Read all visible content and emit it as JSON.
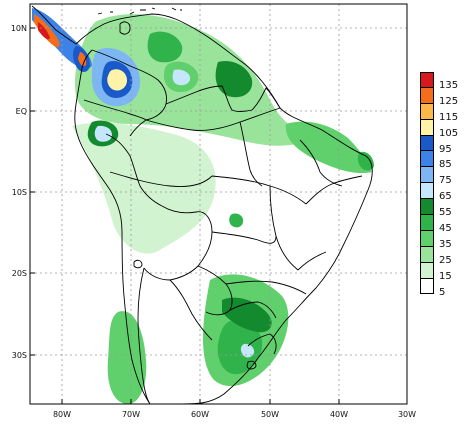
{
  "map": {
    "lat_labels": [
      "10N",
      "EQ",
      "10S",
      "20S",
      "30S"
    ],
    "lon_labels": [
      "80W",
      "70W",
      "60W",
      "50W",
      "40W",
      "30W"
    ]
  },
  "legend": {
    "bins": [
      {
        "label": "135",
        "color": "#d7191c"
      },
      {
        "label": "125",
        "color": "#f46d1a"
      },
      {
        "label": "115",
        "color": "#fdb84a"
      },
      {
        "label": "105",
        "color": "#fff3a8"
      },
      {
        "label": "95",
        "color": "#1a59c8"
      },
      {
        "label": "85",
        "color": "#3d82e6"
      },
      {
        "label": "75",
        "color": "#7db6f2"
      },
      {
        "label": "65",
        "color": "#c6e6fb"
      },
      {
        "label": "55",
        "color": "#138a2e"
      },
      {
        "label": "45",
        "color": "#2fb34a"
      },
      {
        "label": "35",
        "color": "#5fd06c"
      },
      {
        "label": "25",
        "color": "#99e39b"
      },
      {
        "label": "15",
        "color": "#d1f3cf"
      },
      {
        "label": "5",
        "color": "#ffffff"
      }
    ]
  }
}
